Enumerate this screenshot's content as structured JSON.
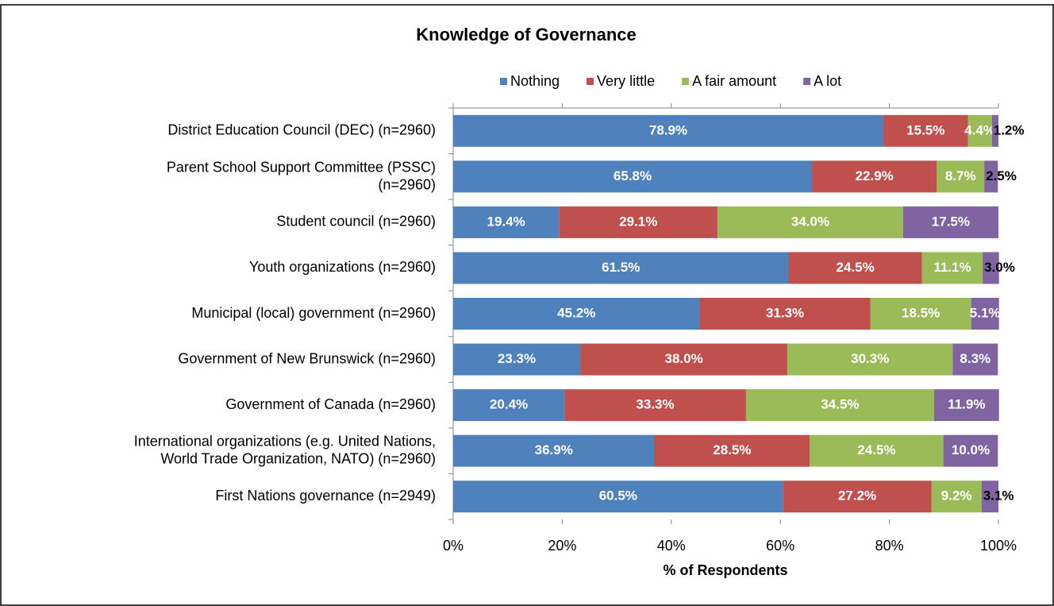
{
  "chart_data": {
    "type": "stacked-bar-horizontal",
    "title": "Knowledge of Governance",
    "x_label": "% of Respondents",
    "categories": [
      "District Education Council (DEC)  (n=2960)",
      "Parent School Support Committee (PSSC)\n(n=2960)",
      "Student council (n=2960)",
      "Youth organizations (n=2960)",
      "Municipal (local) government (n=2960)",
      "Government of New Brunswick (n=2960)",
      "Government of Canada (n=2960)",
      "International organizations (e.g. United Nations,\nWorld Trade Organization, NATO) (n=2960)",
      "First Nations governance (n=2949)"
    ],
    "series": [
      {
        "name": "Nothing",
        "color": "#4f81bd",
        "values": [
          78.9,
          65.8,
          19.4,
          61.5,
          45.2,
          23.3,
          20.4,
          36.9,
          60.5
        ],
        "value_labels": [
          "78.9%",
          "65.8%",
          "19.4%",
          "61.5%",
          "45.2%",
          "23.3%",
          "20.4%",
          "36.9%",
          "60.5%"
        ]
      },
      {
        "name": "Very little",
        "color": "#c0504d",
        "values": [
          15.5,
          22.9,
          29.1,
          24.5,
          31.3,
          38.0,
          33.3,
          28.5,
          27.2
        ],
        "value_labels": [
          "15.5%",
          "22.9%",
          "29.1%",
          "24.5%",
          "31.3%",
          "38.0%",
          "33.3%",
          "28.5%",
          "27.2%"
        ]
      },
      {
        "name": "A fair amount",
        "color": "#9bbb59",
        "values": [
          4.4,
          8.7,
          34.0,
          11.1,
          18.5,
          30.3,
          34.5,
          24.5,
          9.2
        ],
        "value_labels": [
          "4.4%",
          "8.7%",
          "34.0%",
          "11.1%",
          "18.5%",
          "30.3%",
          "34.5%",
          "24.5%",
          "9.2%"
        ]
      },
      {
        "name": "A lot",
        "color": "#8064a2",
        "values": [
          1.2,
          2.5,
          17.5,
          3.0,
          5.1,
          8.3,
          11.9,
          10.0,
          3.1
        ],
        "value_labels": [
          "1.2%",
          "2.5%",
          "17.5%",
          "3.0%",
          "5.1%",
          "8.3%",
          "11.9%",
          "10.0%",
          "3.1%"
        ]
      }
    ],
    "xlim": [
      0,
      100
    ],
    "xticks": [
      {
        "value": 0,
        "label": "0%"
      },
      {
        "value": 20,
        "label": "20%"
      },
      {
        "value": 40,
        "label": "40%"
      },
      {
        "value": 60,
        "label": "60%"
      },
      {
        "value": 80,
        "label": "80%"
      },
      {
        "value": 100,
        "label": "100%"
      }
    ],
    "legend": "top"
  }
}
